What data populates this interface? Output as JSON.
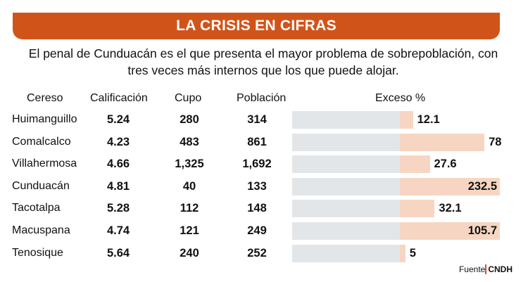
{
  "title": "LA CRISIS EN CIFRAS",
  "subtitle_lines": [
    "El penal de Cunduacán es el que presenta el mayor problema de sobrepoblación, con",
    "tres veces más internos que los que puede alojar."
  ],
  "source_label": "Fuente",
  "source_value": "CNDH",
  "colors": {
    "banner": "#d0541a",
    "base_bar": "#e3e6e8",
    "excess_bar": "#f6d6c2"
  },
  "chart_data": {
    "type": "table",
    "columns": [
      "Cereso",
      "Calificación",
      "Cupo",
      "Población",
      "Exceso %"
    ],
    "rows": [
      {
        "cereso": "Huimanguillo",
        "calificacion": "5.24",
        "cupo": "280",
        "poblacion": "314",
        "exceso": "12.1"
      },
      {
        "cereso": "Comalcalco",
        "calificacion": "4.23",
        "cupo": "483",
        "poblacion": "861",
        "exceso": "78"
      },
      {
        "cereso": "Villahermosa",
        "calificacion": "4.66",
        "cupo": "1,325",
        "poblacion": "1,692",
        "exceso": "27.6"
      },
      {
        "cereso": "Cunduacán",
        "calificacion": "4.81",
        "cupo": "40",
        "poblacion": "133",
        "exceso": "232.5"
      },
      {
        "cereso": "Tacotalpa",
        "calificacion": "5.28",
        "cupo": "112",
        "poblacion": "148",
        "exceso": "32.1"
      },
      {
        "cereso": "Macuspana",
        "calificacion": "4.74",
        "cupo": "121",
        "poblacion": "249",
        "exceso": "105.7"
      },
      {
        "cereso": "Tenosique",
        "calificacion": "5.64",
        "cupo": "240",
        "poblacion": "252",
        "exceso": "5"
      }
    ]
  }
}
